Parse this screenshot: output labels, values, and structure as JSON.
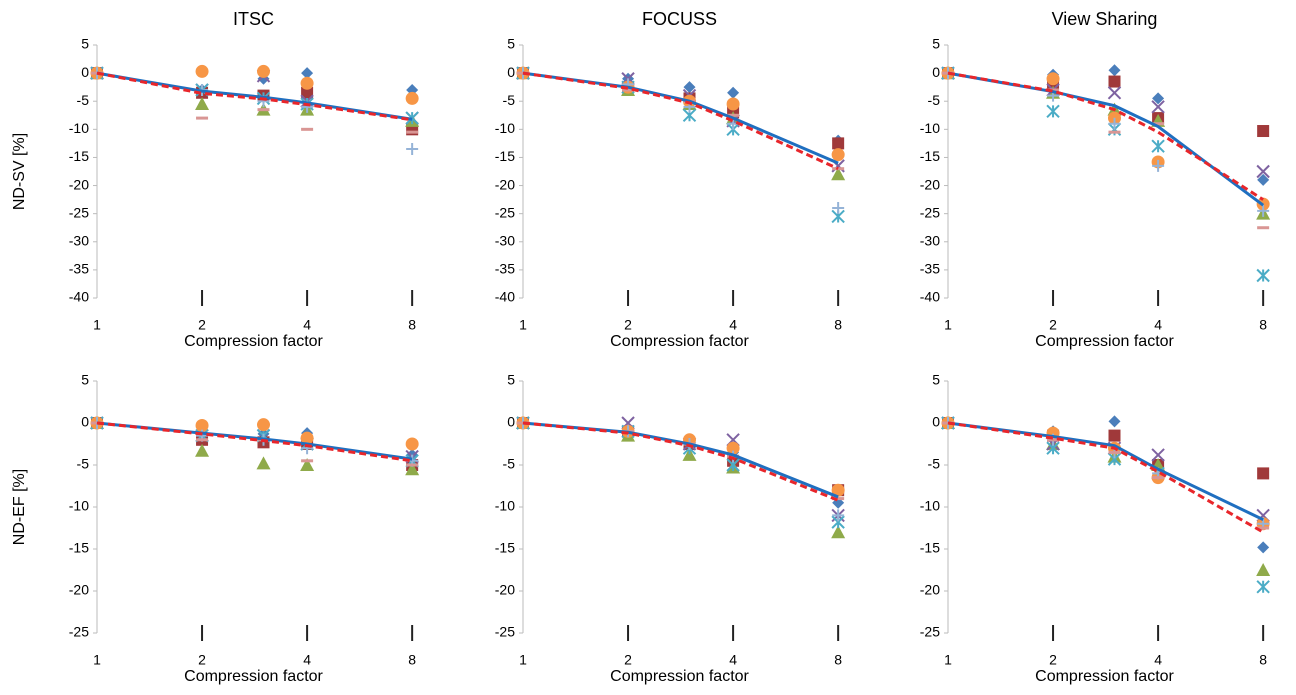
{
  "chart_data": [
    {
      "type": "line",
      "title": "ITSC",
      "y_label": "ND-SV [%]",
      "x_label": "Compression factor",
      "x": [
        1,
        2,
        3,
        4,
        8
      ],
      "log_x": true,
      "xlim": [
        1,
        9
      ],
      "xticks": [
        1,
        2,
        4,
        8
      ],
      "ylim": [
        -40,
        5
      ],
      "yticks": [
        5,
        0,
        -5,
        -10,
        -15,
        -20,
        -25,
        -30,
        -35,
        -40
      ],
      "series": [
        {
          "color": "#4a7ebb",
          "marker": "diamond",
          "values": [
            0,
            -3,
            -1,
            0,
            -3
          ]
        },
        {
          "color": "#a0393a",
          "marker": "square",
          "values": [
            0,
            -3.5,
            -4,
            -3.5,
            -10
          ]
        },
        {
          "color": "#8faa4a",
          "marker": "triangle",
          "values": [
            0,
            -5.5,
            -6.5,
            -6.5,
            -8.5
          ]
        },
        {
          "color": "#7e62a1",
          "marker": "x",
          "values": [
            0,
            -3,
            -0.5,
            -5,
            -8
          ]
        },
        {
          "color": "#4bacc6",
          "marker": "asterisk",
          "values": [
            0,
            -3,
            -4.5,
            -5.5,
            -8
          ]
        },
        {
          "color": "#f79646",
          "marker": "circle",
          "values": [
            0,
            0.3,
            0.3,
            -1.8,
            -4.5
          ]
        },
        {
          "color": "#95b3d7",
          "marker": "plus",
          "values": [
            0,
            -3,
            -5,
            -6,
            -13.5
          ]
        },
        {
          "color": "#d99694",
          "marker": "dash",
          "values": [
            0,
            -8,
            -6.5,
            -10,
            -10.5
          ]
        },
        {
          "color": "#1f6fc0",
          "line_style": "solid",
          "values": [
            0,
            -3.2,
            -4.3,
            -5.3,
            -8.2
          ]
        },
        {
          "color": "#e8262b",
          "line_style": "dashed",
          "values": [
            0,
            -3.6,
            -4.6,
            -5.6,
            -8.3
          ]
        }
      ]
    },
    {
      "type": "line",
      "title": "FOCUSS",
      "x_label": "Compression factor",
      "x": [
        1,
        2,
        3,
        4,
        8
      ],
      "log_x": true,
      "xlim": [
        1,
        9
      ],
      "xticks": [
        1,
        2,
        4,
        8
      ],
      "ylim": [
        -40,
        5
      ],
      "yticks": [
        5,
        0,
        -5,
        -10,
        -15,
        -20,
        -25,
        -30,
        -35,
        -40
      ],
      "series": [
        {
          "color": "#4a7ebb",
          "marker": "diamond",
          "values": [
            0,
            -1,
            -2.5,
            -3.5,
            -12
          ]
        },
        {
          "color": "#a0393a",
          "marker": "square",
          "values": [
            0,
            -2.5,
            -4.5,
            -7,
            -12.5
          ]
        },
        {
          "color": "#8faa4a",
          "marker": "triangle",
          "values": [
            0,
            -3,
            -5.5,
            -8,
            -18
          ]
        },
        {
          "color": "#7e62a1",
          "marker": "x",
          "values": [
            0,
            -1,
            -4,
            -8.5,
            -16.5
          ]
        },
        {
          "color": "#4bacc6",
          "marker": "asterisk",
          "values": [
            0,
            -2.5,
            -7.5,
            -10,
            -25.5
          ]
        },
        {
          "color": "#f79646",
          "marker": "circle",
          "values": [
            0,
            -2.5,
            -5,
            -5.5,
            -14.5
          ]
        },
        {
          "color": "#95b3d7",
          "marker": "plus",
          "values": [
            0,
            -2,
            -6,
            -9,
            -24
          ]
        },
        {
          "color": "#d99694",
          "marker": "dash",
          "values": [
            0,
            -3,
            -5,
            -7.5,
            -17
          ]
        },
        {
          "color": "#1f6fc0",
          "line_style": "solid",
          "values": [
            0,
            -2.5,
            -5,
            -8,
            -16
          ]
        },
        {
          "color": "#e8262b",
          "line_style": "dashed",
          "values": [
            0,
            -2.7,
            -5.3,
            -8.5,
            -17
          ]
        }
      ]
    },
    {
      "type": "line",
      "title": "View Sharing",
      "x_label": "Compression factor",
      "x": [
        1,
        2,
        3,
        4,
        8
      ],
      "log_x": true,
      "xlim": [
        1,
        9
      ],
      "xticks": [
        1,
        2,
        4,
        8
      ],
      "ylim": [
        -40,
        5
      ],
      "yticks": [
        5,
        0,
        -5,
        -10,
        -15,
        -20,
        -25,
        -30,
        -35,
        -40
      ],
      "series": [
        {
          "color": "#4a7ebb",
          "marker": "diamond",
          "values": [
            0,
            -0.3,
            0.5,
            -4.5,
            -19
          ]
        },
        {
          "color": "#a0393a",
          "marker": "square",
          "values": [
            0,
            -2,
            -1.5,
            -8,
            -10.3
          ]
        },
        {
          "color": "#8faa4a",
          "marker": "triangle",
          "values": [
            0,
            -3.5,
            -6.5,
            -8.5,
            -25
          ]
        },
        {
          "color": "#7e62a1",
          "marker": "x",
          "values": [
            0,
            -3,
            -3.5,
            -6,
            -17.5
          ]
        },
        {
          "color": "#4bacc6",
          "marker": "asterisk",
          "values": [
            0,
            -6.8,
            -10,
            -13,
            -36
          ]
        },
        {
          "color": "#f79646",
          "marker": "circle",
          "values": [
            0,
            -1,
            -8,
            -15.8,
            -23.3
          ]
        },
        {
          "color": "#95b3d7",
          "marker": "plus",
          "values": [
            0,
            -4,
            -9,
            -16.5,
            -24.5
          ]
        },
        {
          "color": "#d99694",
          "marker": "dash",
          "values": [
            0,
            -3,
            -10.5,
            -9,
            -27.5
          ]
        },
        {
          "color": "#1f6fc0",
          "line_style": "solid",
          "values": [
            0,
            -3.3,
            -5.8,
            -9.5,
            -23.5
          ]
        },
        {
          "color": "#e8262b",
          "line_style": "dashed",
          "values": [
            0,
            -3.2,
            -6.5,
            -10.5,
            -22.5
          ]
        }
      ]
    },
    {
      "type": "line",
      "y_label": "ND-EF [%]",
      "x_label": "Compression factor",
      "x": [
        1,
        2,
        3,
        4,
        8
      ],
      "log_x": true,
      "xlim": [
        1,
        9
      ],
      "xticks": [
        1,
        2,
        4,
        8
      ],
      "ylim": [
        -25,
        5
      ],
      "yticks": [
        5,
        0,
        -5,
        -10,
        -15,
        -20,
        -25
      ],
      "series": [
        {
          "color": "#4a7ebb",
          "marker": "diamond",
          "values": [
            0,
            -0.5,
            -1.3,
            -1.2,
            -3.8
          ]
        },
        {
          "color": "#a0393a",
          "marker": "square",
          "values": [
            0,
            -2,
            -2.3,
            -2.5,
            -5
          ]
        },
        {
          "color": "#8faa4a",
          "marker": "triangle",
          "values": [
            0,
            -3.3,
            -4.8,
            -5,
            -5.5
          ]
        },
        {
          "color": "#7e62a1",
          "marker": "x",
          "values": [
            0,
            -1.5,
            -1.5,
            -2.5,
            -4
          ]
        },
        {
          "color": "#4bacc6",
          "marker": "asterisk",
          "values": [
            0,
            -1.5,
            -1.5,
            -2.5,
            -4.5
          ]
        },
        {
          "color": "#f79646",
          "marker": "circle",
          "values": [
            0,
            -0.3,
            -0.2,
            -1.8,
            -2.5
          ]
        },
        {
          "color": "#95b3d7",
          "marker": "plus",
          "values": [
            0,
            -1.5,
            -2,
            -3,
            -4.5
          ]
        },
        {
          "color": "#d99694",
          "marker": "dash",
          "values": [
            0,
            -2,
            -2,
            -4.5,
            -5
          ]
        },
        {
          "color": "#1f6fc0",
          "line_style": "solid",
          "values": [
            0,
            -1.2,
            -1.9,
            -2.5,
            -4.3
          ]
        },
        {
          "color": "#e8262b",
          "line_style": "dashed",
          "values": [
            0,
            -1.3,
            -2.1,
            -2.7,
            -4.5
          ]
        }
      ]
    },
    {
      "type": "line",
      "x_label": "Compression factor",
      "x": [
        1,
        2,
        3,
        4,
        8
      ],
      "log_x": true,
      "xlim": [
        1,
        9
      ],
      "xticks": [
        1,
        2,
        4,
        8
      ],
      "ylim": [
        -25,
        5
      ],
      "yticks": [
        5,
        0,
        -5,
        -10,
        -15,
        -20,
        -25
      ],
      "series": [
        {
          "color": "#4a7ebb",
          "marker": "diamond",
          "values": [
            0,
            -1,
            -2.5,
            -3.5,
            -9.5
          ]
        },
        {
          "color": "#a0393a",
          "marker": "square",
          "values": [
            0,
            -1,
            -2.5,
            -4.5,
            -8
          ]
        },
        {
          "color": "#8faa4a",
          "marker": "triangle",
          "values": [
            0,
            -1.5,
            -3.8,
            -5.3,
            -13
          ]
        },
        {
          "color": "#7e62a1",
          "marker": "x",
          "values": [
            0,
            0,
            -2.5,
            -2,
            -11
          ]
        },
        {
          "color": "#4bacc6",
          "marker": "asterisk",
          "values": [
            0,
            -1,
            -3,
            -5,
            -11.8
          ]
        },
        {
          "color": "#f79646",
          "marker": "circle",
          "values": [
            0,
            -1,
            -2,
            -3,
            -8
          ]
        },
        {
          "color": "#95b3d7",
          "marker": "plus",
          "values": [
            0,
            -1,
            -2.5,
            -4,
            -11
          ]
        },
        {
          "color": "#d99694",
          "marker": "dash",
          "values": [
            0,
            -1,
            -2.5,
            -4,
            -9
          ]
        },
        {
          "color": "#1f6fc0",
          "line_style": "solid",
          "values": [
            0,
            -1.1,
            -2.5,
            -3.8,
            -8.8
          ]
        },
        {
          "color": "#e8262b",
          "line_style": "dashed",
          "values": [
            0,
            -1.2,
            -2.7,
            -4.2,
            -9.2
          ]
        }
      ]
    },
    {
      "type": "line",
      "x_label": "Compression factor",
      "x": [
        1,
        2,
        3,
        4,
        8
      ],
      "log_x": true,
      "xlim": [
        1,
        9
      ],
      "xticks": [
        1,
        2,
        4,
        8
      ],
      "ylim": [
        -25,
        5
      ],
      "yticks": [
        5,
        0,
        -5,
        -10,
        -15,
        -20,
        -25
      ],
      "series": [
        {
          "color": "#4a7ebb",
          "marker": "diamond",
          "values": [
            0,
            -1,
            0.2,
            -5.5,
            -14.8
          ]
        },
        {
          "color": "#a0393a",
          "marker": "square",
          "values": [
            0,
            -1.5,
            -1.5,
            -5,
            -6
          ]
        },
        {
          "color": "#8faa4a",
          "marker": "triangle",
          "values": [
            0,
            -2.5,
            -4,
            -5,
            -17.5
          ]
        },
        {
          "color": "#7e62a1",
          "marker": "x",
          "values": [
            0,
            -2.5,
            -3,
            -3.8,
            -11
          ]
        },
        {
          "color": "#4bacc6",
          "marker": "asterisk",
          "values": [
            0,
            -3,
            -4.3,
            -6,
            -19.5
          ]
        },
        {
          "color": "#f79646",
          "marker": "circle",
          "values": [
            0,
            -1.2,
            -3,
            -6.5,
            -12
          ]
        },
        {
          "color": "#95b3d7",
          "marker": "plus",
          "values": [
            0,
            -2,
            -3.5,
            -6,
            -12
          ]
        },
        {
          "color": "#d99694",
          "marker": "dash",
          "values": [
            0,
            -2,
            -3.5,
            -6.5,
            -12.5
          ]
        },
        {
          "color": "#1f6fc0",
          "line_style": "solid",
          "values": [
            0,
            -1.6,
            -2.7,
            -5.5,
            -11.5
          ]
        },
        {
          "color": "#e8262b",
          "line_style": "dashed",
          "values": [
            0,
            -1.8,
            -3,
            -5.8,
            -13
          ]
        }
      ]
    }
  ]
}
